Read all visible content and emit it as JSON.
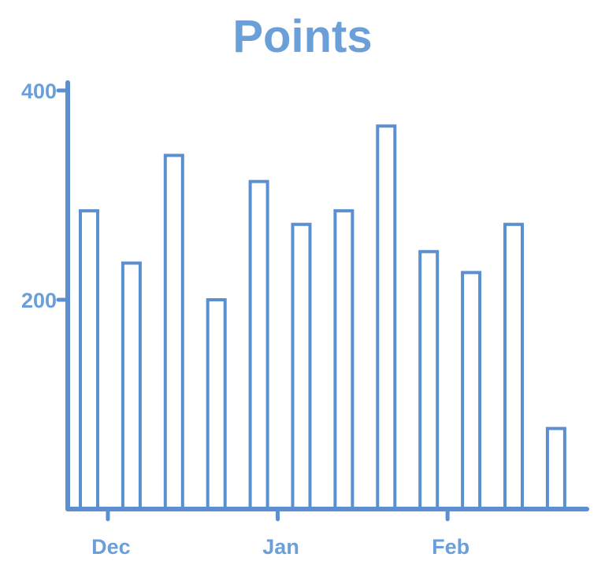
{
  "chart_data": {
    "type": "bar",
    "title": "Points",
    "xlabel": "",
    "ylabel": "",
    "ylim": [
      0,
      400
    ],
    "yticks": [
      200,
      400
    ],
    "yticklabels": [
      "200",
      "400"
    ],
    "xticks": [
      {
        "label": "Dec",
        "after_bar": 0
      },
      {
        "label": "Jan",
        "after_bar": 4
      },
      {
        "label": "Feb",
        "after_bar": 8
      }
    ],
    "series": [
      {
        "values": [
          285,
          235,
          338,
          200,
          313,
          272,
          285,
          366,
          246,
          226,
          272,
          77
        ]
      }
    ],
    "colors": {
      "accent": "#6b9fd8",
      "stroke": "#5b8fd0"
    },
    "grid": false
  }
}
